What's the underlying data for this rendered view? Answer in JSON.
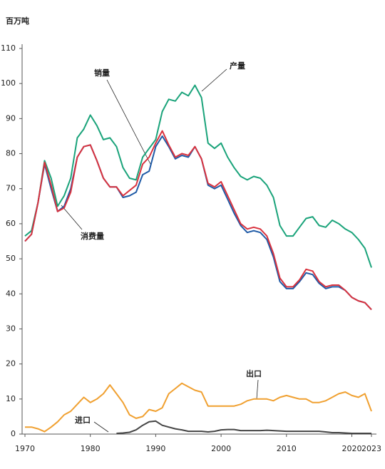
{
  "chart_data": {
    "type": "line",
    "y_label": "百万吨",
    "x": [
      1970,
      1971,
      1972,
      1973,
      1974,
      1975,
      1976,
      1977,
      1978,
      1979,
      1980,
      1981,
      1982,
      1983,
      1984,
      1985,
      1986,
      1987,
      1988,
      1989,
      1990,
      1991,
      1992,
      1993,
      1994,
      1995,
      1996,
      1997,
      1998,
      1999,
      2000,
      2001,
      2002,
      2003,
      2004,
      2005,
      2006,
      2007,
      2008,
      2009,
      2010,
      2011,
      2012,
      2013,
      2014,
      2015,
      2016,
      2017,
      2018,
      2019,
      2020,
      2021,
      2022,
      2023
    ],
    "xlim": [
      1970,
      2023
    ],
    "xticks": [
      1970,
      1980,
      1990,
      2000,
      2010,
      2020,
      2023
    ],
    "ylim": [
      0,
      110
    ],
    "yticks": [
      0,
      10,
      20,
      30,
      40,
      50,
      60,
      70,
      80,
      90,
      100,
      110
    ],
    "series": [
      {
        "name": "产量",
        "color": "#1aa37a",
        "values": [
          56.5,
          58,
          66,
          78,
          73,
          65,
          68,
          73,
          84.5,
          87,
          91,
          88,
          84,
          84.5,
          82,
          76,
          73,
          72.5,
          79,
          81.5,
          84,
          92,
          95.5,
          95,
          97.5,
          96.5,
          99.5,
          96,
          83,
          81.5,
          83,
          79,
          76,
          73.5,
          72.5,
          73.5,
          73,
          71,
          67.5,
          59.5,
          56.5,
          56.5,
          59,
          61.5,
          62,
          59.5,
          59,
          61,
          60,
          58.5,
          57.5,
          55.5,
          53,
          47.5
        ]
      },
      {
        "name": "销量",
        "color": "#1f5aa6",
        "values": [
          55,
          57,
          66,
          77,
          70,
          63.5,
          65,
          70,
          79,
          82,
          82.5,
          78,
          73,
          70.5,
          70.5,
          67.5,
          68,
          69,
          74,
          75,
          82,
          85,
          82,
          78.5,
          79.5,
          79,
          82,
          78.5,
          71,
          70,
          71,
          67,
          63,
          59.5,
          57.5,
          58,
          57.5,
          55.5,
          50.5,
          43.5,
          41.5,
          41.5,
          43.5,
          46,
          45.5,
          43,
          41.5,
          42,
          42,
          41,
          39,
          38,
          37.5,
          35.5
        ]
      },
      {
        "name": "消费量",
        "color": "#d9323e",
        "values": [
          55,
          57,
          66,
          77.5,
          71,
          63.5,
          64.5,
          69,
          79,
          82,
          82.5,
          78,
          73,
          70.5,
          70.5,
          68,
          69.5,
          71,
          77,
          79,
          83,
          86.5,
          82.5,
          79,
          80,
          79.5,
          82,
          78.5,
          71.5,
          70.5,
          72,
          68,
          64,
          60,
          58.5,
          59,
          58.5,
          56.5,
          51.5,
          44.5,
          42,
          42,
          44,
          47,
          46.5,
          43.5,
          42,
          42.5,
          42.5,
          41,
          39,
          38,
          37.5,
          35.5
        ]
      },
      {
        "name": "出口",
        "color": "#f0a030",
        "values": [
          2,
          2,
          1.5,
          0.7,
          2,
          3.5,
          5.5,
          6.5,
          8.5,
          10.5,
          9,
          10,
          11.5,
          14,
          11.5,
          9,
          5.5,
          4.5,
          5,
          7,
          6.5,
          7.5,
          11.5,
          13,
          14.5,
          13.5,
          12.5,
          12,
          8,
          8,
          8,
          8,
          8,
          8.5,
          9.5,
          10,
          10,
          10,
          9.5,
          10.5,
          11,
          10.5,
          10,
          10,
          9,
          9,
          9.5,
          10.5,
          11.5,
          12,
          11,
          10.5,
          11.5,
          6.5
        ]
      },
      {
        "name": "进口",
        "color": "#444444",
        "values": [
          null,
          null,
          null,
          null,
          null,
          null,
          null,
          null,
          null,
          null,
          null,
          null,
          null,
          null,
          0.2,
          0.3,
          0.5,
          1.2,
          2.5,
          3.5,
          3.7,
          2.5,
          2,
          1.5,
          1.2,
          0.8,
          0.8,
          0.8,
          0.6,
          0.8,
          1.2,
          1.3,
          1.3,
          1,
          1,
          1,
          1,
          1.1,
          1,
          0.9,
          0.8,
          0.8,
          0.8,
          0.8,
          0.8,
          0.8,
          0.6,
          0.4,
          0.4,
          0.3,
          0.2,
          0.2,
          0.2,
          0.2
        ]
      }
    ]
  }
}
